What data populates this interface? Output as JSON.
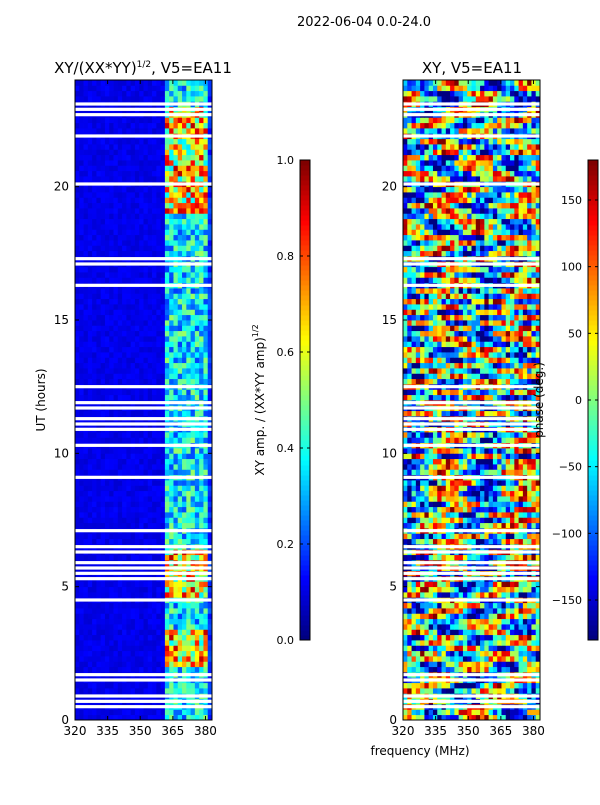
{
  "figure": {
    "suptitle": "2022-06-04 0.0-24.0",
    "xlabel_shared": "frequency (MHz)"
  },
  "chart_data": [
    {
      "type": "heatmap",
      "title": "XY/(XX*YY)^{1/2}, V5=EA11",
      "title_main": "XY/(XX*YY)",
      "title_exp": "1/2",
      "title_tail": ", V5=EA11",
      "xlabel": "",
      "ylabel": "UT (hours)",
      "xlim": [
        320,
        383
      ],
      "ylim": [
        0,
        24
      ],
      "x_ticks": [
        320,
        335,
        350,
        365,
        380
      ],
      "y_ticks": [
        0,
        5,
        10,
        15,
        20
      ],
      "colormap": "jet",
      "colorbar": {
        "label": "XY amp. / (XX*YY amp)^{1/2}",
        "label_main": "XY amp. / (XX*YY amp)",
        "label_exp": "1/2",
        "range": [
          0.0,
          1.0
        ],
        "ticks": [
          "0.0",
          "0.2",
          "0.4",
          "0.6",
          "0.8",
          "1.0"
        ]
      }
    },
    {
      "type": "heatmap",
      "title": "XY, V5=EA11",
      "xlabel": "frequency (MHz)",
      "ylabel": "",
      "xlim": [
        320,
        383
      ],
      "ylim": [
        0,
        24
      ],
      "x_ticks": [
        320,
        335,
        350,
        365,
        380
      ],
      "y_ticks": [
        0,
        5,
        10,
        15,
        20
      ],
      "colormap": "jet",
      "colorbar": {
        "label": "phase (deg.)",
        "range": [
          -180,
          180
        ],
        "ticks": [
          "−150",
          "−100",
          "−50",
          "0",
          "50",
          "100",
          "150"
        ]
      }
    }
  ]
}
